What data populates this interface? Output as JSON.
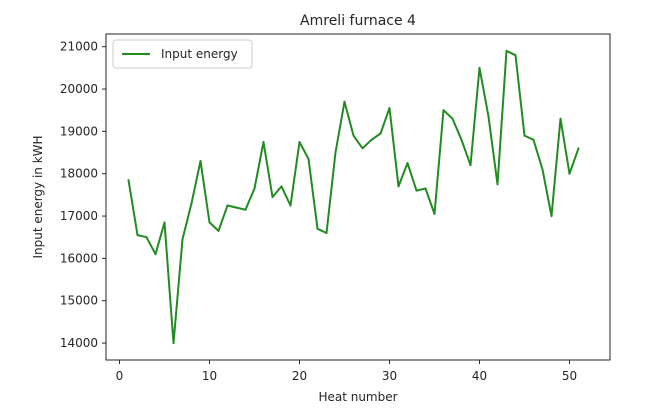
{
  "chart_data": {
    "type": "line",
    "title": "Amreli furnace 4",
    "xlabel": "Heat number",
    "ylabel": "Input energy in kWH",
    "xlim": [
      -1.5,
      54.5
    ],
    "ylim": [
      13600,
      21300
    ],
    "xticks": [
      0,
      10,
      20,
      30,
      40,
      50
    ],
    "yticks": [
      14000,
      15000,
      16000,
      17000,
      18000,
      19000,
      20000,
      21000
    ],
    "grid": false,
    "legend_position": "upper-left",
    "series": [
      {
        "name": "Input energy",
        "color": "#228b22",
        "x": [
          1,
          2,
          3,
          4,
          5,
          6,
          7,
          8,
          9,
          10,
          11,
          12,
          13,
          14,
          15,
          16,
          17,
          18,
          19,
          20,
          21,
          22,
          23,
          24,
          25,
          26,
          27,
          28,
          29,
          30,
          31,
          32,
          33,
          34,
          35,
          36,
          37,
          38,
          39,
          40,
          41,
          42,
          43,
          44,
          45,
          46,
          47,
          48,
          49,
          50,
          51
        ],
        "values": [
          17850,
          16550,
          16500,
          16100,
          16850,
          14000,
          16450,
          17300,
          18300,
          16850,
          16650,
          17250,
          17200,
          17150,
          17650,
          18750,
          17450,
          17700,
          17250,
          18750,
          18350,
          16700,
          16600,
          18500,
          19700,
          18900,
          18600,
          18800,
          18950,
          19550,
          17700,
          18250,
          17600,
          17650,
          17050,
          19500,
          19300,
          18800,
          18200,
          20500,
          19350,
          17750,
          20900,
          20800,
          18900,
          18800,
          18100,
          17000,
          19300,
          18000,
          18600
        ]
      }
    ]
  }
}
